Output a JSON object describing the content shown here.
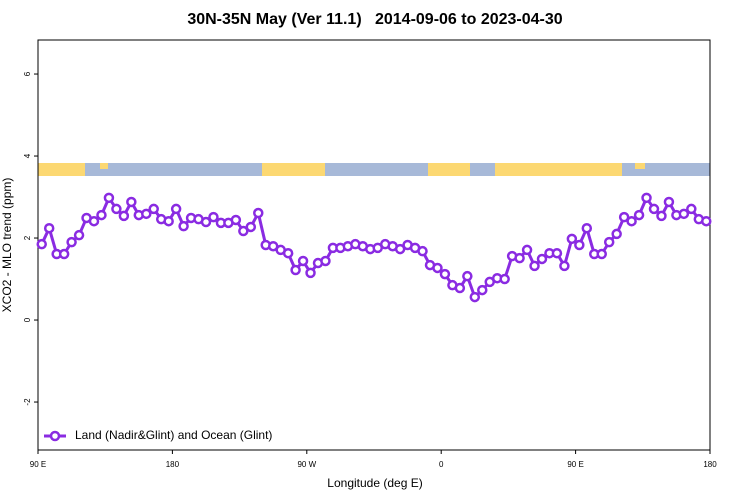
{
  "chart_data": {
    "type": "line",
    "title": "30N-35N May (Ver 11.1)   2014-09-06 to 2023-04-30",
    "x_label": "Longitude (deg E)",
    "y_label": "XCO2 - MLO trend (ppm)",
    "xlim": [
      90,
      540
    ],
    "ylim": [
      -3.17,
      6.83
    ],
    "xticks": [
      {
        "value": 90,
        "label": "90 E"
      },
      180,
      {
        "value": 270,
        "label": "90 W"
      },
      {
        "value": 360,
        "label": "0"
      },
      {
        "value": 450,
        "label": "90 E"
      },
      {
        "value": 540,
        "label": "180"
      }
    ],
    "yticks": [
      -2,
      0,
      2,
      4,
      6
    ],
    "legend": "bottom-left",
    "x": [
      92.5,
      97.5,
      102.5,
      107.5,
      112.5,
      117.5,
      122.5,
      127.5,
      132.5,
      137.5,
      142.5,
      147.5,
      152.5,
      157.5,
      162.5,
      167.5,
      172.5,
      177.5,
      182.5,
      187.5,
      192.5,
      197.5,
      202.5,
      207.5,
      212.5,
      217.5,
      222.5,
      227.5,
      232.5,
      237.5,
      242.5,
      247.5,
      252.5,
      257.5,
      262.5,
      267.5,
      272.5,
      277.5,
      282.5,
      287.5,
      292.5,
      297.5,
      302.5,
      307.5,
      312.5,
      317.5,
      322.5,
      327.5,
      332.5,
      337.5,
      342.5,
      347.5,
      352.5,
      357.5,
      362.5,
      367.5,
      372.5,
      377.5,
      382.5,
      387.5,
      392.5,
      397.5,
      402.5,
      407.5,
      412.5,
      417.5,
      422.5,
      427.5,
      432.5,
      437.5,
      442.5,
      447.5,
      452.5,
      457.5,
      462.5,
      467.5,
      472.5,
      477.5,
      482.5,
      487.5,
      492.5,
      497.5,
      502.5,
      507.5,
      512.5,
      517.5,
      522.5,
      527.5,
      532.5,
      537.5
    ],
    "series": [
      {
        "name": "Land (Nadir&Glint) and Ocean (Glint)",
        "color": "#8a2be2",
        "values": [
          1.85,
          2.24,
          1.61,
          1.61,
          1.9,
          2.07,
          2.49,
          2.41,
          2.56,
          2.98,
          2.71,
          2.54,
          2.88,
          2.56,
          2.59,
          2.71,
          2.46,
          2.41,
          2.71,
          2.29,
          2.49,
          2.46,
          2.39,
          2.51,
          2.37,
          2.37,
          2.44,
          2.17,
          2.27,
          2.61,
          1.83,
          1.8,
          1.71,
          1.63,
          1.22,
          1.44,
          1.15,
          1.39,
          1.44,
          1.76,
          1.76,
          1.8,
          1.85,
          1.8,
          1.73,
          1.76,
          1.85,
          1.8,
          1.73,
          1.83,
          1.76,
          1.68,
          1.34,
          1.27,
          1.12,
          0.85,
          0.78,
          1.07,
          0.56,
          0.73,
          0.93,
          1.02,
          1.0,
          1.56,
          1.51,
          1.71,
          1.32,
          1.49,
          1.63,
          1.63,
          1.32,
          1.98,
          1.83,
          2.24,
          1.61,
          1.61,
          1.9,
          2.1,
          2.51,
          2.41,
          2.56,
          2.98,
          2.71,
          2.54,
          2.88,
          2.56,
          2.59,
          2.71,
          2.46,
          2.41
        ]
      }
    ]
  }
}
